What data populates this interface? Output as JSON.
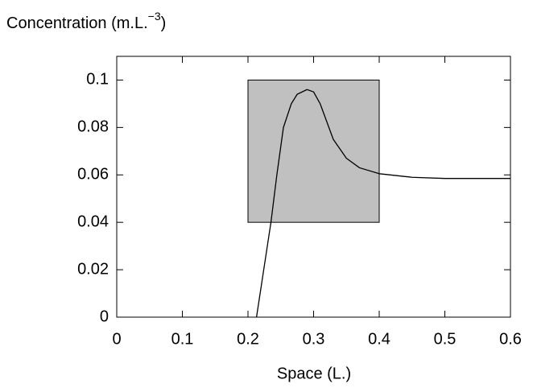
{
  "chart_data": {
    "type": "line",
    "ylabel": {
      "base": "Concentration (m.L.",
      "sup": "−3",
      "end": ")"
    },
    "xlabel": "Space (L.)",
    "x": [
      0.213,
      0.235,
      0.244,
      0.254,
      0.266,
      0.275,
      0.29,
      0.3,
      0.31,
      0.33,
      0.35,
      0.37,
      0.4,
      0.45,
      0.5,
      0.6
    ],
    "series": [
      {
        "color": "#000000",
        "values": [
          0,
          0.04,
          0.06,
          0.08,
          0.09,
          0.094,
          0.096,
          0.095,
          0.09,
          0.075,
          0.067,
          0.063,
          0.0605,
          0.059,
          0.0585,
          0.0585
        ]
      }
    ],
    "region": {
      "x": [
        0.2,
        0.4
      ],
      "y": [
        0.04,
        0.1
      ],
      "color": "#c0c0c0"
    },
    "xlim": [
      0,
      0.6
    ],
    "ylim": [
      0,
      0.11
    ],
    "xticks": [
      0,
      0.1,
      0.2,
      0.3,
      0.4,
      0.5,
      0.6
    ],
    "yticks": [
      0,
      0.02,
      0.04,
      0.06,
      0.08,
      0.1
    ]
  }
}
